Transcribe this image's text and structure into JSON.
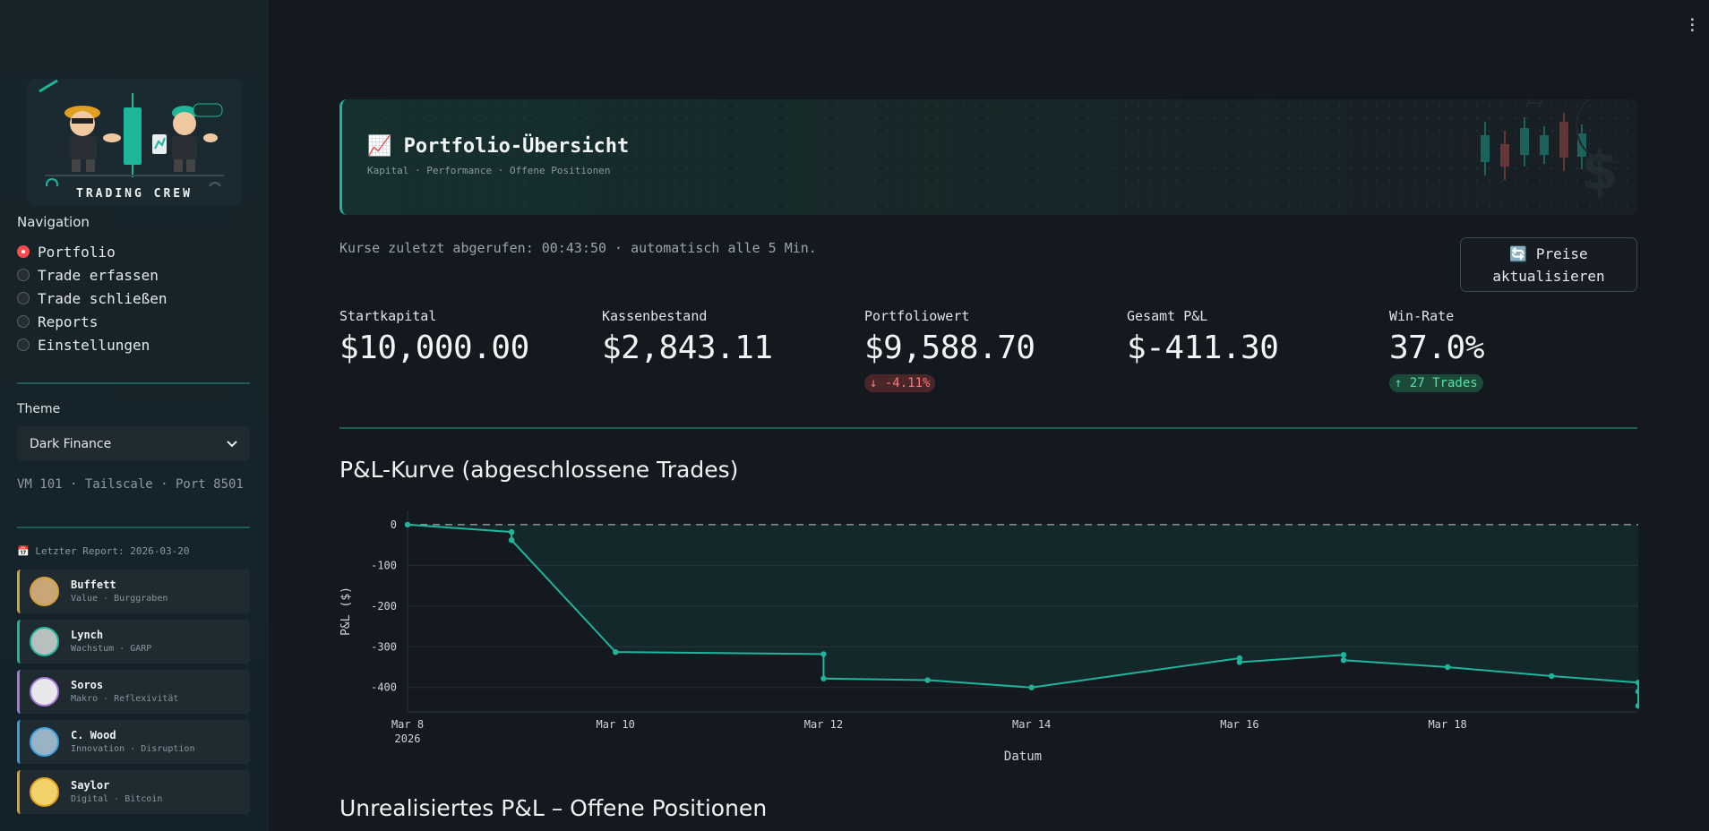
{
  "sidebar": {
    "logo_text": "TRADING CREW",
    "nav_title": "Navigation",
    "nav_items": [
      {
        "label": "Portfolio",
        "selected": true
      },
      {
        "label": "Trade erfassen",
        "selected": false
      },
      {
        "label": "Trade schließen",
        "selected": false
      },
      {
        "label": "Reports",
        "selected": false
      },
      {
        "label": "Einstellungen",
        "selected": false
      }
    ],
    "theme_label": "Theme",
    "theme_value": "Dark Finance",
    "vm_info": "VM 101 · Tailscale · Port 8501",
    "report_date": "📅 Letzter Report: 2026-03-20",
    "personas": [
      {
        "name": "Buffett",
        "desc": "Value · Burggraben",
        "color": "#d4a23a"
      },
      {
        "name": "Lynch",
        "desc": "Wachstum · GARP",
        "color": "#1fb59b"
      },
      {
        "name": "Soros",
        "desc": "Makro · Reflexivität",
        "color": "#a57ad6"
      },
      {
        "name": "C. Wood",
        "desc": "Innovation · Disruption",
        "color": "#3aa0e0"
      },
      {
        "name": "Saylor",
        "desc": "Digital · Bitcoin",
        "color": "#e0a020"
      }
    ]
  },
  "header": {
    "title": "📈 Portfolio-Übersicht",
    "subtitle": "Kapital · Performance · Offene Positionen"
  },
  "status": {
    "last_fetch": "Kurse zuletzt abgerufen: 00:43:50 · automatisch alle 5 Min.",
    "refresh_line1": "🔄 Preise",
    "refresh_line2": "aktualisieren"
  },
  "metrics": [
    {
      "label": "Startkapital",
      "value": "$10,000.00"
    },
    {
      "label": "Kassenbestand",
      "value": "$2,843.11"
    },
    {
      "label": "Portfoliowert",
      "value": "$9,588.70",
      "delta": "↓ -4.11%",
      "delta_type": "neg"
    },
    {
      "label": "Gesamt P&L",
      "value": "$-411.30"
    },
    {
      "label": "Win-Rate",
      "value": "37.0%",
      "delta": "↑ 27 Trades",
      "delta_type": "pos"
    }
  ],
  "sections": {
    "pnl_curve": "P&L-Kurve (abgeschlossene Trades)",
    "unrealized": "Unrealisiertes P&L – Offene Positionen"
  },
  "colors": {
    "accent": "#1fb59b",
    "negative": "#ff7a7a",
    "positive": "#5ce0a7",
    "background": "#14191f"
  },
  "chart_data": {
    "type": "line",
    "xlabel": "Datum",
    "ylabel": "P&L ($)",
    "ylim": [
      -460,
      35
    ],
    "xlim": [
      "2026-03-08",
      "2026-03-19T20:00"
    ],
    "yticks": [
      0,
      -100,
      -200,
      -300,
      -400
    ],
    "xticks": [
      {
        "date": "2026-03-08",
        "label": "Mar 8",
        "sublabel": "2026"
      },
      {
        "date": "2026-03-10",
        "label": "Mar 10"
      },
      {
        "date": "2026-03-12",
        "label": "Mar 12"
      },
      {
        "date": "2026-03-14",
        "label": "Mar 14"
      },
      {
        "date": "2026-03-16",
        "label": "Mar 16"
      },
      {
        "date": "2026-03-18",
        "label": "Mar 18"
      }
    ],
    "reference_line": 0,
    "x": [
      "2026-03-08T00:00",
      "2026-03-09T00:00",
      "2026-03-09T00:00",
      "2026-03-10T00:00",
      "2026-03-12T00:00",
      "2026-03-12T00:00",
      "2026-03-13T00:00",
      "2026-03-14T00:00",
      "2026-03-16T00:00",
      "2026-03-16T00:00",
      "2026-03-17T00:00",
      "2026-03-17T00:00",
      "2026-03-18T00:00",
      "2026-03-19T00:00",
      "2026-03-19T20:00",
      "2026-03-19T20:00",
      "2026-03-19T20:00"
    ],
    "y": [
      0,
      -18,
      -38,
      -313,
      -318,
      -378,
      -382,
      -400,
      -328,
      -338,
      -320,
      -333,
      -350,
      -372,
      -388,
      -410,
      -445
    ]
  }
}
